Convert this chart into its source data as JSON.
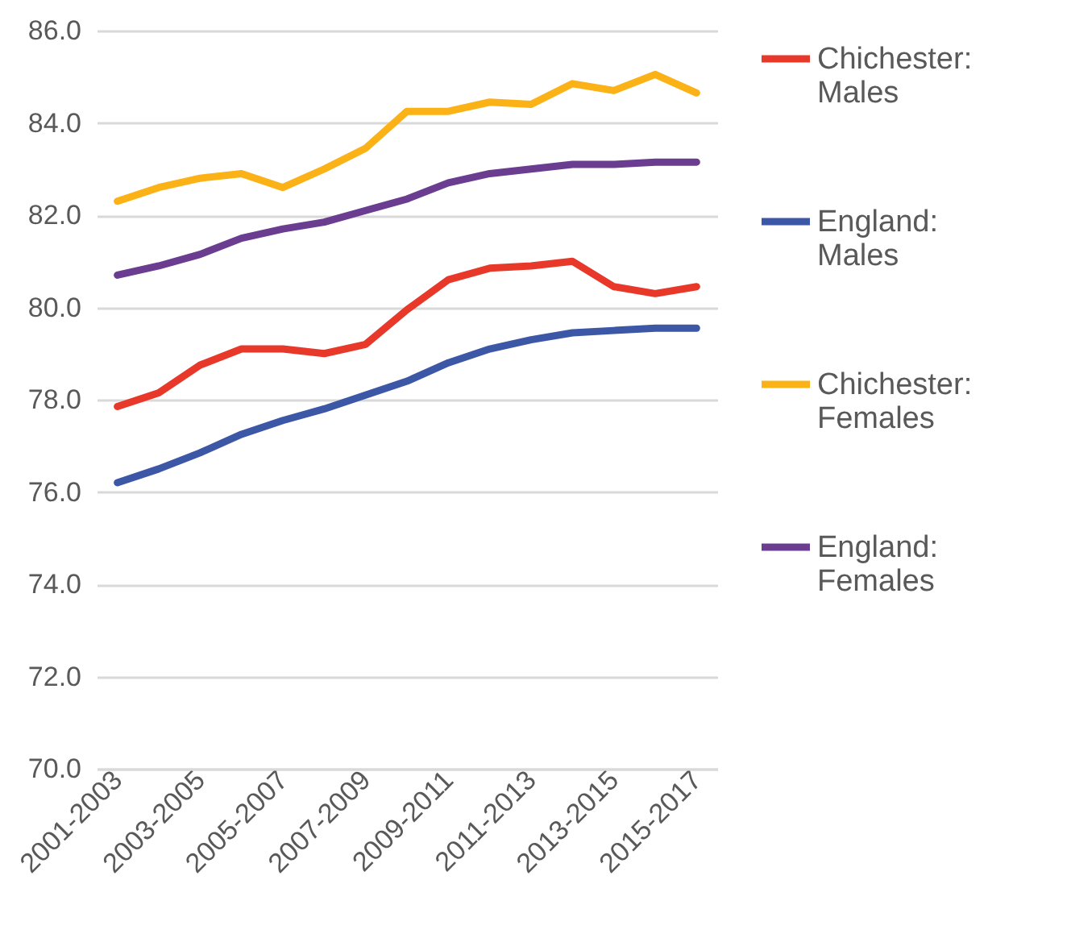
{
  "chart_data": {
    "type": "line",
    "categories": [
      "2001-2003",
      null,
      "2003-2005",
      null,
      "2005-2007",
      null,
      "2007-2009",
      null,
      "2009-2011",
      null,
      "2011-2013",
      null,
      "2013-2015",
      null,
      "2015-2017"
    ],
    "series": [
      {
        "name": "Chichester: Males",
        "color": "#e8382a",
        "values": [
          77.85,
          78.15,
          78.75,
          79.1,
          79.1,
          79.0,
          79.2,
          79.95,
          80.6,
          80.85,
          80.9,
          81.0,
          80.45,
          80.3,
          80.45
        ]
      },
      {
        "name": "England: Males",
        "color": "#3b57a6",
        "values": [
          76.2,
          76.5,
          76.85,
          77.25,
          77.55,
          77.8,
          78.1,
          78.4,
          78.8,
          79.1,
          79.3,
          79.45,
          79.5,
          79.55,
          79.55
        ]
      },
      {
        "name": "Chichester: Females",
        "color": "#fbb217",
        "values": [
          82.3,
          82.6,
          82.8,
          82.9,
          82.6,
          83.0,
          83.45,
          84.25,
          84.25,
          84.45,
          84.4,
          84.85,
          84.7,
          85.05,
          84.65
        ]
      },
      {
        "name": "England: Females",
        "color": "#6a3d91",
        "values": [
          80.7,
          80.9,
          81.15,
          81.5,
          81.7,
          81.85,
          82.1,
          82.35,
          82.7,
          82.9,
          83.0,
          83.1,
          83.1,
          83.15,
          83.15
        ]
      }
    ],
    "ylim": [
      70,
      86
    ],
    "yticks": [
      {
        "value": 70,
        "label": "70.0"
      },
      {
        "value": 72,
        "label": "72.0"
      },
      {
        "value": 74,
        "label": "74.0"
      },
      {
        "value": 76,
        "label": "76.0"
      },
      {
        "value": 78,
        "label": "78.0"
      },
      {
        "value": 80,
        "label": "80.0"
      },
      {
        "value": 82,
        "label": "82.0"
      },
      {
        "value": 84,
        "label": "84.0"
      },
      {
        "value": 86,
        "label": "86.0"
      }
    ],
    "grid": "y",
    "legend": "right",
    "line_style": "solid"
  }
}
